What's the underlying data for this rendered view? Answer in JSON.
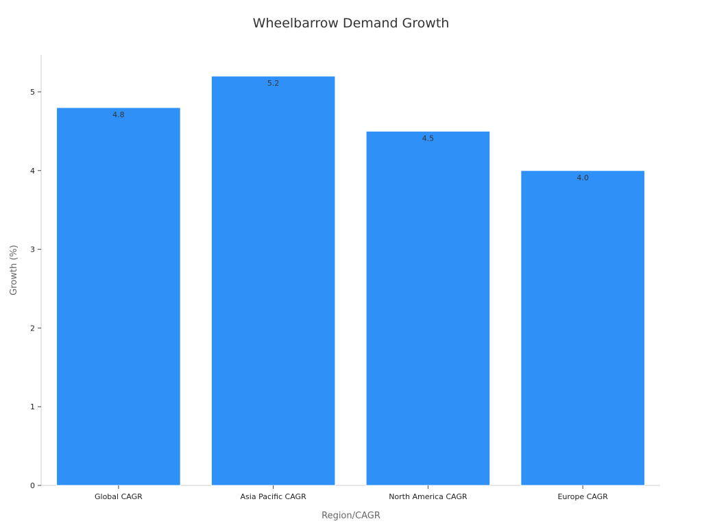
{
  "chart_data": {
    "type": "bar",
    "title": "Wheelbarrow Demand Growth",
    "xlabel": "Region/CAGR",
    "ylabel": "Growth (%)",
    "categories": [
      "Global CAGR",
      "Asia Pacific CAGR",
      "North America CAGR",
      "Europe CAGR"
    ],
    "values": [
      4.8,
      5.2,
      4.5,
      4.0
    ],
    "data_labels": [
      "4.8",
      "5.2",
      "4.5",
      "4.0"
    ],
    "ylim": [
      0,
      5.47
    ],
    "yticks": [
      0,
      1,
      2,
      3,
      4,
      5
    ],
    "grid": false,
    "colors": {
      "bar": "#2f91f8"
    }
  }
}
